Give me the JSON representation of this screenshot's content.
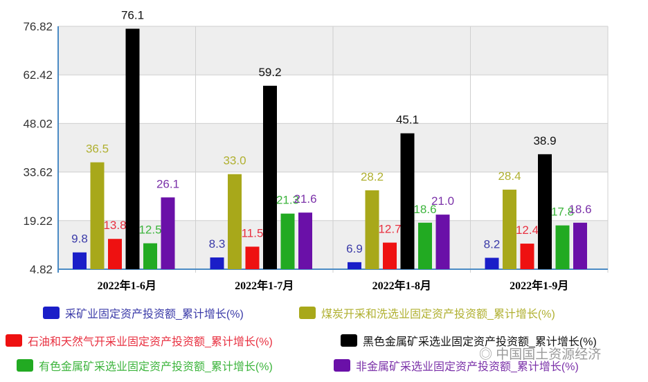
{
  "chart_data": {
    "type": "bar",
    "categories": [
      "2022年1-6月",
      "2022年1-7月",
      "2022年1-8月",
      "2022年1-9月"
    ],
    "y_ticks": [
      "4.82",
      "19.22",
      "33.62",
      "48.02",
      "62.42",
      "76.82"
    ],
    "ylim": [
      4.82,
      76.82
    ],
    "grid": true,
    "legend_position": "bottom",
    "series": [
      {
        "name": "采矿业固定资产投资额_累计增长(%)",
        "color": "#1a1ec8",
        "label_color": "#3a3aa8",
        "values": [
          9.8,
          8.3,
          6.9,
          8.2
        ]
      },
      {
        "name": "煤炭开采和洗选业固定资产投资额_累计增长(%)",
        "color": "#a8a81a",
        "label_color": "#b0b030",
        "values": [
          36.5,
          33.0,
          28.2,
          28.4
        ]
      },
      {
        "name": "石油和天然气开采业固定资产投资额_累计增长(%)",
        "color": "#ee1111",
        "label_color": "#e83040",
        "values": [
          13.8,
          11.5,
          12.7,
          12.4
        ]
      },
      {
        "name": "黑色金属矿采选业固定资产投资额_累计增长(%)",
        "color": "#000000",
        "label_color": "#111111",
        "values": [
          76.1,
          59.2,
          45.1,
          38.9
        ]
      },
      {
        "name": "有色金属矿采选业固定资产投资额_累计增长(%)",
        "color": "#22aa22",
        "label_color": "#3cb43c",
        "values": [
          12.5,
          21.3,
          18.6,
          17.8
        ]
      },
      {
        "name": "非金属矿采选业固定资产投资额_累计增长(%)",
        "color": "#6a10a8",
        "label_color": "#7a30a8",
        "values": [
          26.1,
          21.6,
          21.0,
          18.6
        ]
      }
    ]
  },
  "watermark": "中国国土资源经济"
}
